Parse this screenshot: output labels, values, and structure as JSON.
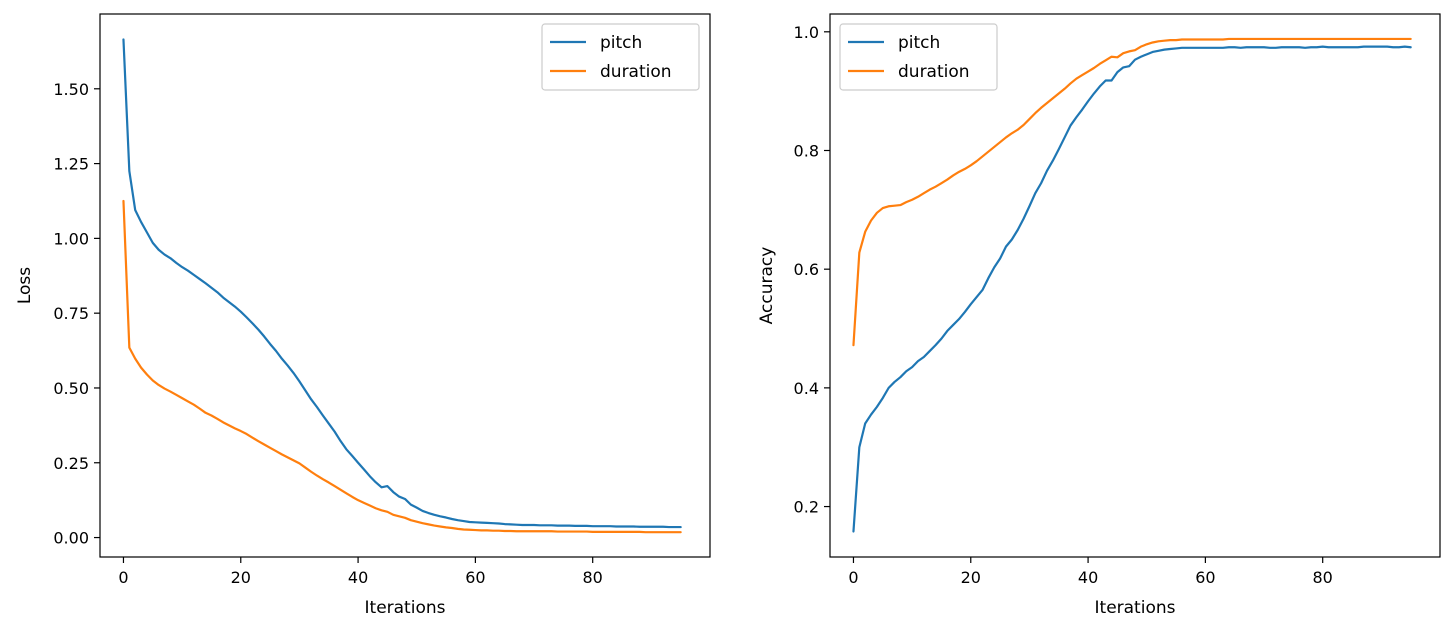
{
  "chart_data": [
    {
      "type": "line",
      "title": "",
      "xlabel": "Iterations",
      "ylabel": "Loss",
      "xlim": [
        -4,
        100
      ],
      "ylim": [
        -0.065,
        1.75
      ],
      "xticks": [
        0,
        20,
        40,
        60,
        80
      ],
      "xtick_labels": [
        "0",
        "20",
        "40",
        "60",
        "80"
      ],
      "yticks": [
        0.0,
        0.25,
        0.5,
        0.75,
        1.0,
        1.25,
        1.5
      ],
      "ytick_labels": [
        "0.00",
        "0.25",
        "0.50",
        "0.75",
        "1.00",
        "1.25",
        "1.50"
      ],
      "grid": false,
      "legend": "top-right",
      "series": [
        {
          "name": "pitch",
          "color": "#1f77b4",
          "values": [
            1.665,
            1.225,
            1.095,
            1.055,
            1.02,
            0.985,
            0.962,
            0.946,
            0.934,
            0.918,
            0.904,
            0.892,
            0.878,
            0.864,
            0.85,
            0.835,
            0.82,
            0.802,
            0.787,
            0.772,
            0.755,
            0.736,
            0.716,
            0.695,
            0.672,
            0.647,
            0.624,
            0.598,
            0.575,
            0.55,
            0.522,
            0.492,
            0.462,
            0.436,
            0.408,
            0.381,
            0.354,
            0.323,
            0.295,
            0.273,
            0.25,
            0.228,
            0.205,
            0.185,
            0.168,
            0.172,
            0.152,
            0.137,
            0.129,
            0.11,
            0.1,
            0.089,
            0.082,
            0.076,
            0.071,
            0.067,
            0.062,
            0.058,
            0.055,
            0.052,
            0.051,
            0.05,
            0.049,
            0.048,
            0.047,
            0.045,
            0.044,
            0.043,
            0.042,
            0.042,
            0.042,
            0.041,
            0.041,
            0.041,
            0.04,
            0.04,
            0.04,
            0.039,
            0.039,
            0.039,
            0.038,
            0.038,
            0.038,
            0.038,
            0.037,
            0.037,
            0.037,
            0.037,
            0.036,
            0.036,
            0.036,
            0.036,
            0.036,
            0.035,
            0.035,
            0.035
          ]
        },
        {
          "name": "duration",
          "color": "#ff7f0e",
          "values": [
            1.125,
            0.635,
            0.598,
            0.568,
            0.545,
            0.525,
            0.51,
            0.498,
            0.488,
            0.477,
            0.466,
            0.455,
            0.444,
            0.431,
            0.417,
            0.408,
            0.397,
            0.385,
            0.375,
            0.365,
            0.356,
            0.346,
            0.334,
            0.322,
            0.311,
            0.3,
            0.289,
            0.278,
            0.268,
            0.258,
            0.248,
            0.234,
            0.22,
            0.207,
            0.195,
            0.184,
            0.172,
            0.16,
            0.148,
            0.136,
            0.125,
            0.116,
            0.107,
            0.098,
            0.091,
            0.086,
            0.076,
            0.071,
            0.066,
            0.058,
            0.053,
            0.048,
            0.044,
            0.04,
            0.037,
            0.034,
            0.032,
            0.029,
            0.027,
            0.026,
            0.025,
            0.024,
            0.024,
            0.023,
            0.023,
            0.022,
            0.022,
            0.021,
            0.021,
            0.021,
            0.021,
            0.021,
            0.021,
            0.021,
            0.02,
            0.02,
            0.02,
            0.02,
            0.02,
            0.02,
            0.019,
            0.019,
            0.019,
            0.019,
            0.019,
            0.019,
            0.019,
            0.019,
            0.019,
            0.018,
            0.018,
            0.018,
            0.018,
            0.018,
            0.018,
            0.018
          ]
        }
      ]
    },
    {
      "type": "line",
      "title": "",
      "xlabel": "Iterations",
      "ylabel": "Accuracy",
      "xlim": [
        -4,
        100
      ],
      "ylim": [
        0.115,
        1.03
      ],
      "xticks": [
        0,
        20,
        40,
        60,
        80
      ],
      "xtick_labels": [
        "0",
        "20",
        "40",
        "60",
        "80"
      ],
      "yticks": [
        0.2,
        0.4,
        0.6,
        0.8,
        1.0
      ],
      "ytick_labels": [
        "0.2",
        "0.4",
        "0.6",
        "0.8",
        "1.0"
      ],
      "grid": false,
      "legend": "top-left",
      "series": [
        {
          "name": "pitch",
          "color": "#1f77b4",
          "values": [
            0.158,
            0.3,
            0.34,
            0.355,
            0.368,
            0.383,
            0.4,
            0.41,
            0.418,
            0.428,
            0.435,
            0.445,
            0.452,
            0.462,
            0.472,
            0.483,
            0.496,
            0.506,
            0.516,
            0.528,
            0.541,
            0.553,
            0.565,
            0.585,
            0.603,
            0.618,
            0.638,
            0.65,
            0.666,
            0.685,
            0.706,
            0.728,
            0.745,
            0.766,
            0.783,
            0.802,
            0.822,
            0.842,
            0.856,
            0.869,
            0.883,
            0.896,
            0.908,
            0.918,
            0.918,
            0.932,
            0.94,
            0.942,
            0.953,
            0.958,
            0.962,
            0.966,
            0.968,
            0.97,
            0.971,
            0.972,
            0.973,
            0.973,
            0.973,
            0.973,
            0.973,
            0.973,
            0.973,
            0.973,
            0.974,
            0.974,
            0.973,
            0.974,
            0.974,
            0.974,
            0.974,
            0.973,
            0.973,
            0.974,
            0.974,
            0.974,
            0.974,
            0.973,
            0.974,
            0.974,
            0.975,
            0.974,
            0.974,
            0.974,
            0.974,
            0.974,
            0.974,
            0.975,
            0.975,
            0.975,
            0.975,
            0.975,
            0.974,
            0.974,
            0.975,
            0.974
          ]
        },
        {
          "name": "duration",
          "color": "#ff7f0e",
          "values": [
            0.472,
            0.628,
            0.663,
            0.682,
            0.695,
            0.703,
            0.706,
            0.707,
            0.708,
            0.713,
            0.717,
            0.722,
            0.728,
            0.734,
            0.739,
            0.745,
            0.751,
            0.758,
            0.764,
            0.769,
            0.775,
            0.782,
            0.79,
            0.798,
            0.806,
            0.814,
            0.822,
            0.829,
            0.835,
            0.843,
            0.853,
            0.863,
            0.872,
            0.88,
            0.888,
            0.896,
            0.904,
            0.913,
            0.921,
            0.927,
            0.933,
            0.939,
            0.946,
            0.952,
            0.958,
            0.957,
            0.964,
            0.967,
            0.969,
            0.975,
            0.979,
            0.982,
            0.984,
            0.985,
            0.986,
            0.986,
            0.987,
            0.987,
            0.987,
            0.987,
            0.987,
            0.987,
            0.987,
            0.987,
            0.988,
            0.988,
            0.988,
            0.988,
            0.988,
            0.988,
            0.988,
            0.988,
            0.988,
            0.988,
            0.988,
            0.988,
            0.988,
            0.988,
            0.988,
            0.988,
            0.988,
            0.988,
            0.988,
            0.988,
            0.988,
            0.988,
            0.988,
            0.988,
            0.988,
            0.988,
            0.988,
            0.988,
            0.988,
            0.988,
            0.988,
            0.988
          ]
        }
      ]
    }
  ]
}
